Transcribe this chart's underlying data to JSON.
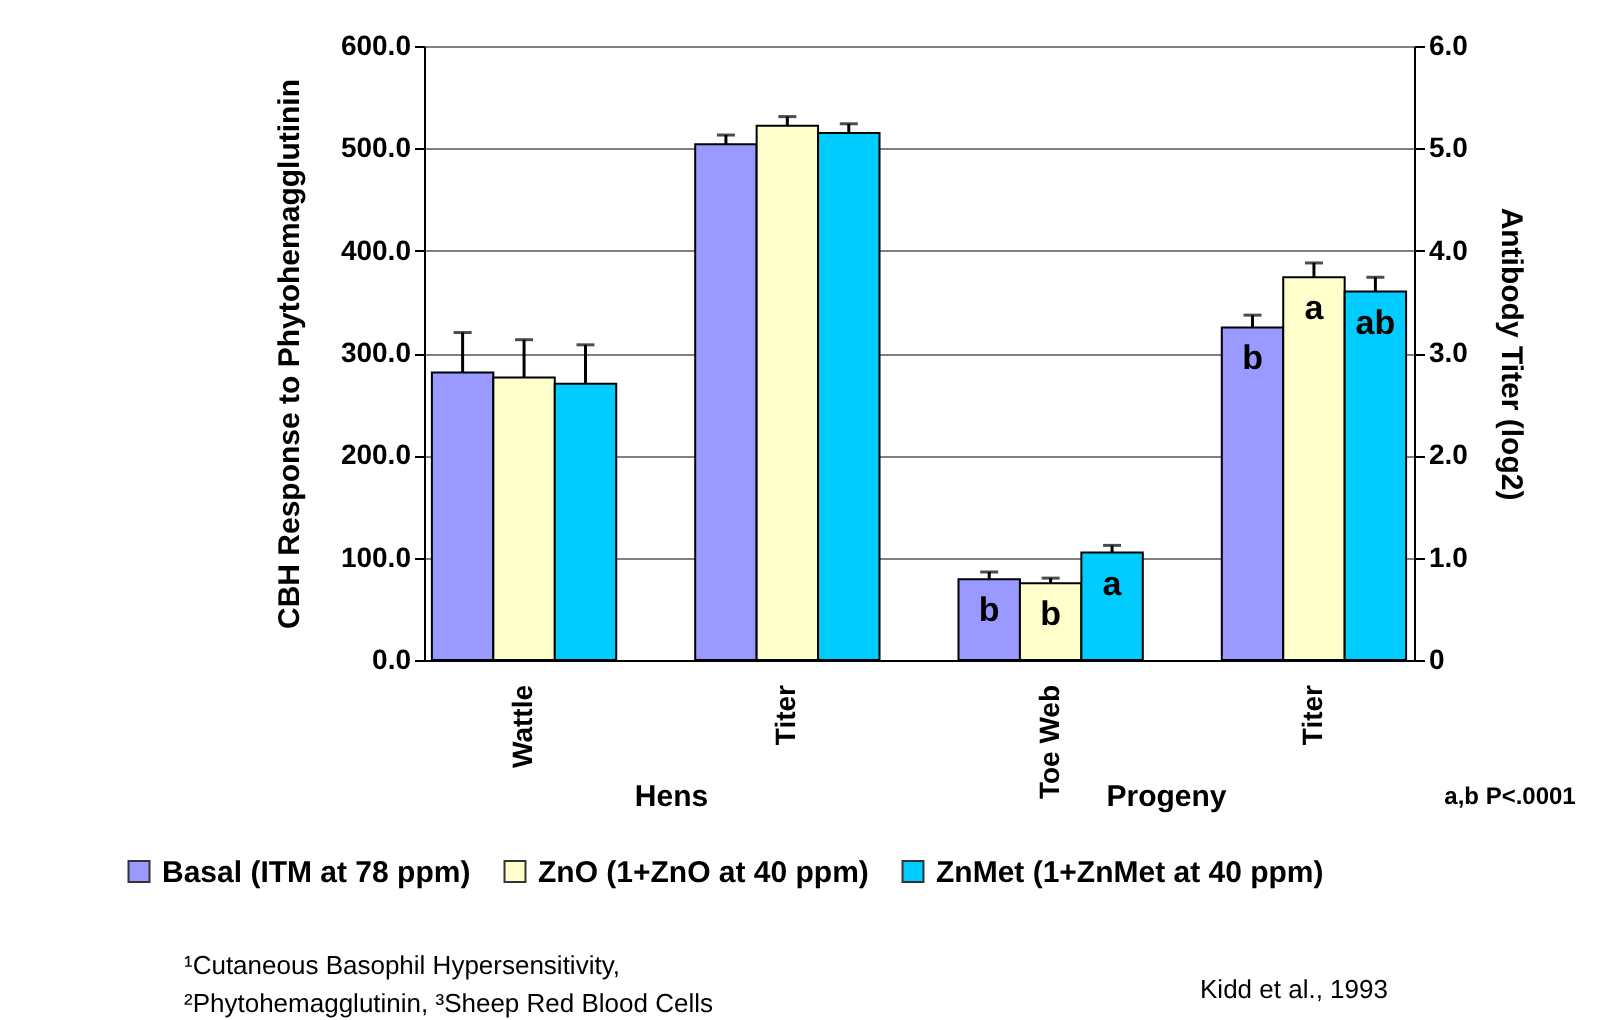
{
  "chart_data": {
    "type": "bar",
    "ylabel": "CBH Response to Phytohemagglutinin",
    "y2label": "Antibody Titer (log2)",
    "categories": [
      "Wattle",
      "Titer",
      "Toe Web",
      "Titer"
    ],
    "series": [
      {
        "name": "Basal (ITM at 78 ppm)",
        "color": "#9999ff",
        "values": [
          281,
          504,
          79,
          325
        ],
        "errors": [
          [
            281,
            320
          ],
          [
            504,
            513
          ],
          [
            79,
            86
          ],
          [
            325,
            337
          ]
        ],
        "value_labels": [
          null,
          null,
          "b",
          "b"
        ]
      },
      {
        "name": "ZnO (1+ZnO at 40 ppm)",
        "color": "#ffffcc",
        "values": [
          276,
          522,
          75,
          374
        ],
        "errors": [
          [
            276,
            313
          ],
          [
            522,
            531
          ],
          [
            75,
            80
          ],
          [
            374,
            388
          ]
        ],
        "value_labels": [
          null,
          null,
          "b",
          "a"
        ]
      },
      {
        "name": "ZnMet (1+ZnMet at 40 ppm)",
        "color": "#00ccff",
        "values": [
          270,
          515,
          105,
          360
        ],
        "errors": [
          [
            270,
            308
          ],
          [
            515,
            524
          ],
          [
            105,
            112
          ],
          [
            360,
            374
          ]
        ],
        "value_labels": [
          null,
          null,
          "a",
          "ab"
        ]
      }
    ],
    "ylim": [
      0,
      600
    ],
    "yticks": [
      {
        "value": 0,
        "label": "0.0"
      },
      {
        "value": 100,
        "label": "100.0"
      },
      {
        "value": 200,
        "label": "200.0"
      },
      {
        "value": 300,
        "label": "300.0"
      },
      {
        "value": 400,
        "label": "400.0"
      },
      {
        "value": 500,
        "label": "500.0"
      },
      {
        "value": 600,
        "label": "600.0"
      }
    ],
    "y2lim": [
      0,
      6
    ],
    "y2ticks": [
      0,
      {
        "value": 1,
        "label": "1.0"
      },
      {
        "value": 2,
        "label": "2.0"
      },
      {
        "value": 3,
        "label": "3.0"
      },
      {
        "value": 4,
        "label": "4.0"
      },
      {
        "value": 5,
        "label": "5.0"
      },
      {
        "value": 6,
        "label": "6.0"
      }
    ],
    "grid": "y",
    "legend": "bottom",
    "annotations": [
      "Hens",
      "Progeny",
      "a,b P<.0001",
      "¹Cutaneous Basophil Hypersensitivity,",
      "²Phytohemagglutinin, ³Sheep Red Blood Cells",
      "Kidd et al., 1993"
    ]
  }
}
